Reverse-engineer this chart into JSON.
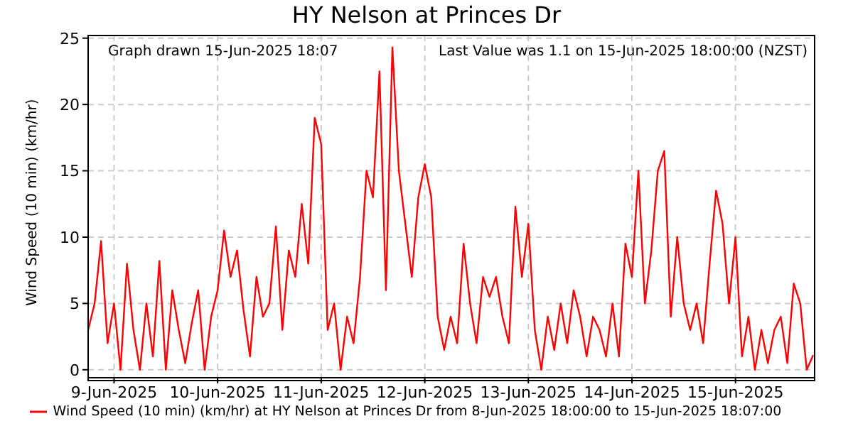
{
  "chart_data": {
    "type": "line",
    "title": "HY Nelson at Princes Dr",
    "ylabel": "Wind Speed (10 min) (km/hr)",
    "annotations": [
      "Graph drawn 15-Jun-2025 18:07",
      "Last Value was 1.1 on 15-Jun-2025 18:00:00 (NZST)"
    ],
    "x": [
      "2025-06-08T18:00",
      "2025-06-08T19:30",
      "2025-06-08T21:00",
      "2025-06-08T22:30",
      "2025-06-09T00:00",
      "2025-06-09T01:30",
      "2025-06-09T03:00",
      "2025-06-09T04:30",
      "2025-06-09T06:00",
      "2025-06-09T07:30",
      "2025-06-09T09:00",
      "2025-06-09T10:30",
      "2025-06-09T12:00",
      "2025-06-09T13:30",
      "2025-06-09T15:00",
      "2025-06-09T16:30",
      "2025-06-09T18:00",
      "2025-06-09T19:30",
      "2025-06-09T21:00",
      "2025-06-09T22:30",
      "2025-06-10T00:00",
      "2025-06-10T01:30",
      "2025-06-10T03:00",
      "2025-06-10T04:30",
      "2025-06-10T06:00",
      "2025-06-10T07:30",
      "2025-06-10T09:00",
      "2025-06-10T10:30",
      "2025-06-10T12:00",
      "2025-06-10T13:30",
      "2025-06-10T15:00",
      "2025-06-10T16:30",
      "2025-06-10T18:00",
      "2025-06-10T19:30",
      "2025-06-10T21:00",
      "2025-06-10T22:30",
      "2025-06-11T00:00",
      "2025-06-11T01:30",
      "2025-06-11T03:00",
      "2025-06-11T04:30",
      "2025-06-11T06:00",
      "2025-06-11T07:30",
      "2025-06-11T09:00",
      "2025-06-11T10:30",
      "2025-06-11T12:00",
      "2025-06-11T13:30",
      "2025-06-11T15:00",
      "2025-06-11T16:30",
      "2025-06-11T18:00",
      "2025-06-11T19:30",
      "2025-06-11T21:00",
      "2025-06-11T22:30",
      "2025-06-12T00:00",
      "2025-06-12T01:30",
      "2025-06-12T03:00",
      "2025-06-12T04:30",
      "2025-06-12T06:00",
      "2025-06-12T07:30",
      "2025-06-12T09:00",
      "2025-06-12T10:30",
      "2025-06-12T12:00",
      "2025-06-12T13:30",
      "2025-06-12T15:00",
      "2025-06-12T16:30",
      "2025-06-12T18:00",
      "2025-06-12T19:30",
      "2025-06-12T21:00",
      "2025-06-12T22:30",
      "2025-06-13T00:00",
      "2025-06-13T01:30",
      "2025-06-13T03:00",
      "2025-06-13T04:30",
      "2025-06-13T06:00",
      "2025-06-13T07:30",
      "2025-06-13T09:00",
      "2025-06-13T10:30",
      "2025-06-13T12:00",
      "2025-06-13T13:30",
      "2025-06-13T15:00",
      "2025-06-13T16:30",
      "2025-06-13T18:00",
      "2025-06-13T19:30",
      "2025-06-13T21:00",
      "2025-06-13T22:30",
      "2025-06-14T00:00",
      "2025-06-14T01:30",
      "2025-06-14T03:00",
      "2025-06-14T04:30",
      "2025-06-14T06:00",
      "2025-06-14T07:30",
      "2025-06-14T09:00",
      "2025-06-14T10:30",
      "2025-06-14T12:00",
      "2025-06-14T13:30",
      "2025-06-14T15:00",
      "2025-06-14T16:30",
      "2025-06-14T18:00",
      "2025-06-14T19:30",
      "2025-06-14T21:00",
      "2025-06-14T22:30",
      "2025-06-15T00:00",
      "2025-06-15T01:30",
      "2025-06-15T03:00",
      "2025-06-15T04:30",
      "2025-06-15T06:00",
      "2025-06-15T07:30",
      "2025-06-15T09:00",
      "2025-06-15T10:30",
      "2025-06-15T12:00",
      "2025-06-15T13:30",
      "2025-06-15T15:00",
      "2025-06-15T16:30",
      "2025-06-15T18:00"
    ],
    "series": [
      {
        "name": "Wind Speed (10 min) (km/hr) at HY Nelson at Princes Dr from  8-Jun-2025 18:00:00 to 15-Jun-2025 18:07:00",
        "color": "#ff0000",
        "values": [
          3,
          5,
          9.7,
          2,
          5,
          0,
          8,
          3,
          0,
          5,
          1,
          8.2,
          0,
          6,
          3,
          0.5,
          3.5,
          6,
          0,
          4,
          6,
          10.5,
          7,
          9,
          4.5,
          1,
          7,
          4,
          5,
          10.8,
          3,
          9,
          7,
          12.5,
          8,
          19,
          17,
          3,
          5,
          0,
          4,
          2,
          7,
          15,
          13,
          22.5,
          6,
          24.3,
          15,
          11,
          7,
          13,
          15.5,
          13,
          4,
          1.5,
          4,
          2,
          9.5,
          5,
          2,
          7,
          5.5,
          7,
          4,
          2,
          12.3,
          7,
          11,
          3,
          0,
          4,
          1.5,
          5,
          2,
          6,
          4,
          1,
          4,
          3,
          1,
          5,
          1,
          9.5,
          7,
          15,
          5,
          9,
          15,
          16.5,
          4,
          10,
          5,
          3,
          5,
          2,
          8,
          13.5,
          11,
          5,
          10,
          1,
          4,
          0,
          3,
          0.5,
          3,
          4,
          0.5,
          6.5,
          5,
          0,
          1.1
        ]
      }
    ],
    "xlim": [
      "2025-06-08T18:00",
      "2025-06-15T18:20"
    ],
    "xticks": [
      {
        "value": "2025-06-09",
        "label": "9-Jun-2025"
      },
      {
        "value": "2025-06-10",
        "label": "10-Jun-2025"
      },
      {
        "value": "2025-06-11",
        "label": "11-Jun-2025"
      },
      {
        "value": "2025-06-12",
        "label": "12-Jun-2025"
      },
      {
        "value": "2025-06-13",
        "label": "13-Jun-2025"
      },
      {
        "value": "2025-06-14",
        "label": "14-Jun-2025"
      },
      {
        "value": "2025-06-15",
        "label": "15-Jun-2025"
      }
    ],
    "ylim": [
      -0.6,
      25.2
    ],
    "yticks": [
      0,
      5,
      10,
      15,
      20,
      25
    ],
    "grid": true,
    "legend": "bottom",
    "line_style": "solid",
    "marker": "none"
  }
}
